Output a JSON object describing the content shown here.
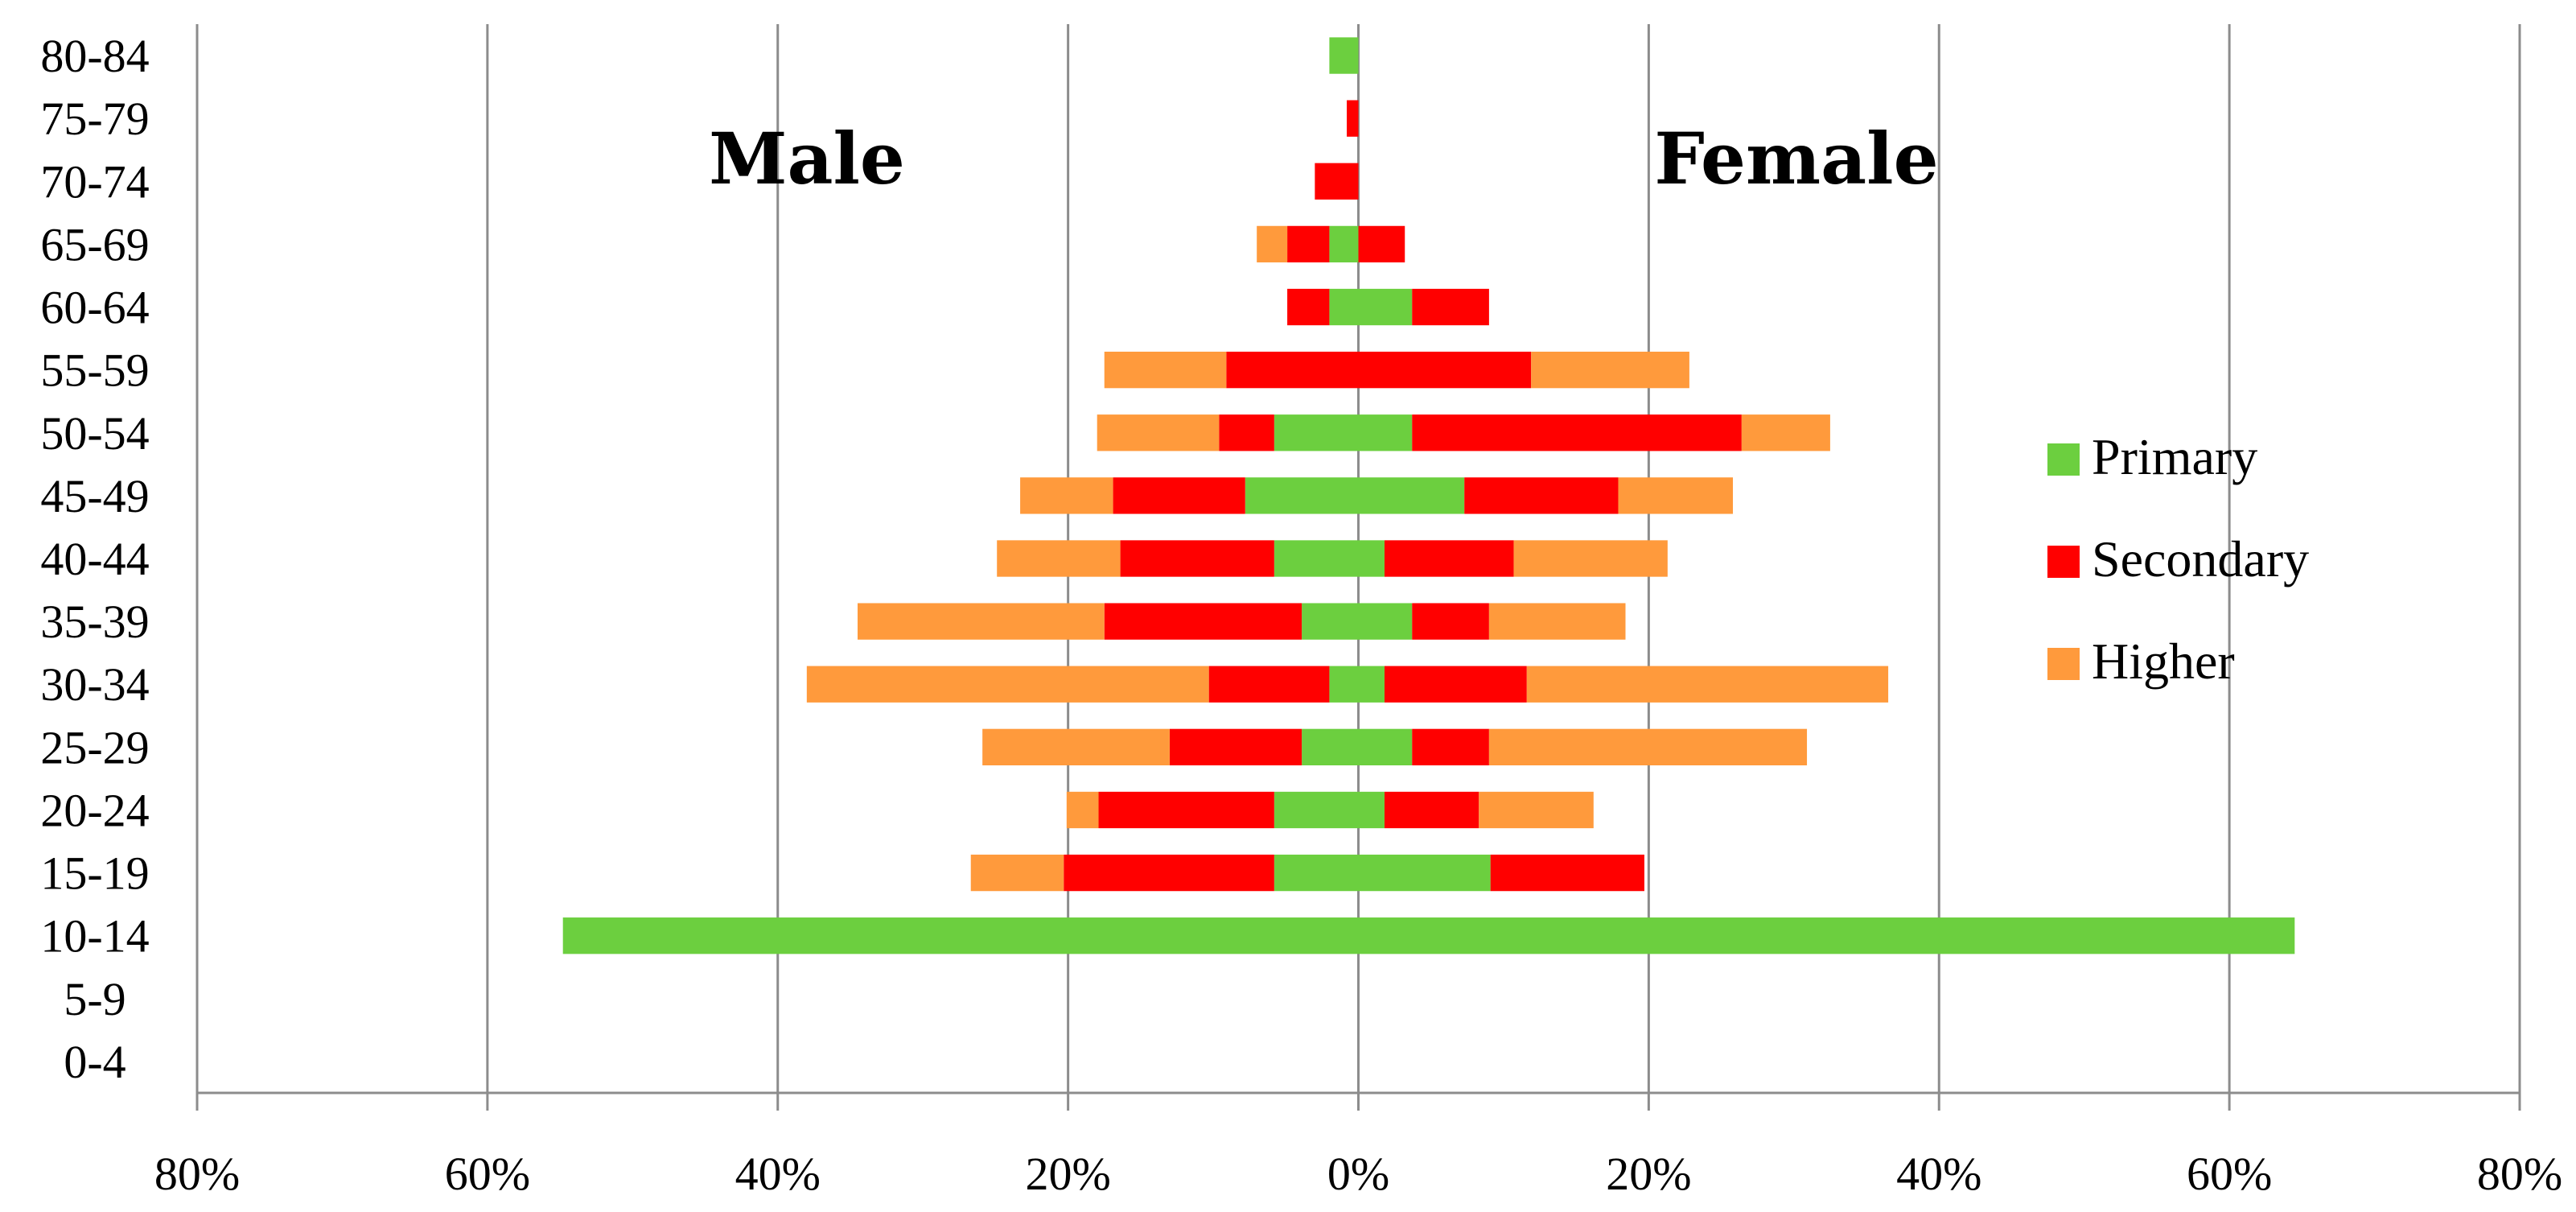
{
  "chart_data": {
    "type": "bar",
    "orientation": "horizontal-population-pyramid",
    "stacked": true,
    "categories": [
      "0-4",
      "5-9",
      "10-14",
      "15-19",
      "20-24",
      "25-29",
      "30-34",
      "35-39",
      "40-44",
      "45-49",
      "50-54",
      "55-59",
      "60-64",
      "65-69",
      "70-74",
      "75-79",
      "80-84"
    ],
    "x_ticks": [
      "80%",
      "60%",
      "40%",
      "20%",
      "0%",
      "20%",
      "40%",
      "60%",
      "80%"
    ],
    "xlim": [
      -80,
      80
    ],
    "grid": true,
    "legend_position": "right",
    "series": [
      {
        "name": "Primary",
        "color": "#6ccf3f",
        "male": [
          0,
          0,
          54.8,
          5.8,
          5.8,
          3.9,
          2.0,
          3.9,
          5.8,
          7.8,
          5.8,
          0,
          2.0,
          2.0,
          0,
          0,
          2.0
        ],
        "female": [
          0,
          0,
          64.5,
          9.1,
          1.8,
          3.7,
          1.8,
          3.7,
          1.8,
          7.3,
          3.7,
          0,
          3.7,
          0,
          0,
          0,
          0
        ]
      },
      {
        "name": "Secondary",
        "color": "#ff0000",
        "male": [
          0,
          0,
          0,
          14.5,
          12.1,
          9.1,
          8.3,
          13.6,
          10.6,
          9.1,
          3.8,
          9.1,
          2.9,
          2.9,
          3.0,
          0.8,
          0
        ],
        "female": [
          0,
          0,
          0,
          10.6,
          6.5,
          5.3,
          9.8,
          5.3,
          8.9,
          10.6,
          22.7,
          11.9,
          5.3,
          3.2,
          0,
          0,
          0
        ]
      },
      {
        "name": "Higher",
        "color": "#ff9a3c",
        "male": [
          0,
          0,
          0,
          6.4,
          2.2,
          12.9,
          27.7,
          17.0,
          8.5,
          6.4,
          8.4,
          8.4,
          0,
          2.1,
          0,
          0,
          0
        ],
        "female": [
          0,
          0,
          0,
          0,
          7.9,
          21.9,
          24.9,
          9.4,
          10.6,
          7.9,
          6.1,
          10.9,
          0,
          0,
          0,
          0,
          0
        ]
      }
    ],
    "annotations": {
      "left": "Male",
      "right": "Female"
    }
  }
}
